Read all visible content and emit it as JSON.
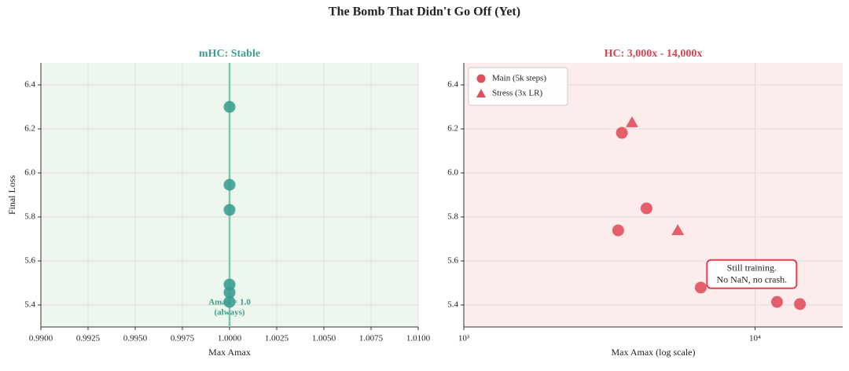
{
  "title": "The Bomb That Didn't Go Off (Yet)",
  "chart_data": [
    {
      "type": "scatter",
      "title": "mHC: Stable",
      "title_color": "#3a9e8f",
      "background": "#eef7ee",
      "xlabel": "Max Amax",
      "ylabel": "Final Loss",
      "xscale": "linear",
      "grid": true,
      "xlim": [
        0.99,
        1.01
      ],
      "xticks": [
        {
          "value": 0.99,
          "label": "0.9900"
        },
        {
          "value": 0.9925,
          "label": "0.9925"
        },
        {
          "value": 0.995,
          "label": "0.9950"
        },
        {
          "value": 0.9975,
          "label": "0.9975"
        },
        {
          "value": 1,
          "label": "1.0000"
        },
        {
          "value": 1.0025,
          "label": "1.0025"
        },
        {
          "value": 1.005,
          "label": "1.0050"
        },
        {
          "value": 1.0075,
          "label": "1.0075"
        },
        {
          "value": 1.01,
          "label": "1.0100"
        }
      ],
      "ylim": [
        5.3,
        6.5
      ],
      "yticks": [
        5.4,
        5.6,
        5.8,
        {
          "value": 6,
          "label": "6.0"
        },
        6.2,
        6.4
      ],
      "vline": 1,
      "vline_color": "#7cc5b6",
      "series": [
        {
          "color": "#3a9e8f",
          "marker": "circle",
          "x": [
            1,
            1,
            1,
            1,
            1,
            1
          ],
          "values": [
            6.3,
            5.946,
            5.832,
            5.493,
            5.457,
            5.414
          ]
        }
      ],
      "annotation": [
        "Amax = 1.0",
        "(always)"
      ]
    },
    {
      "type": "scatter",
      "title": "HC: 3,000x - 14,000x",
      "title_color": "#d9434f",
      "background": "#fdecec",
      "xlabel": "Max Amax (log scale)",
      "xscale": "log",
      "grid": true,
      "legend": "upper left",
      "xlim": [
        1000,
        20000
      ],
      "xticks": [
        {
          "value": 1000,
          "label": "10³"
        },
        {
          "value": 10000,
          "label": "10⁴"
        }
      ],
      "ylim": [
        5.3,
        6.5
      ],
      "yticks": [
        5.4,
        5.6,
        5.8,
        {
          "value": 6,
          "label": "6.0"
        },
        6.2,
        6.4
      ],
      "series": [
        {
          "name": "Main (5k steps)",
          "color": "#e0505c",
          "marker": "circle",
          "x": [
            3490,
            4240,
            3390,
            6510,
            11900,
            14260
          ],
          "values": [
            6.182,
            5.839,
            5.739,
            5.479,
            5.414,
            5.404
          ]
        },
        {
          "name": "Stress (3x LR)",
          "color": "#e0505c",
          "marker": "triangle",
          "x": [
            3780,
            5430
          ],
          "values": [
            6.229,
            5.739
          ]
        }
      ],
      "annotation": [
        "Still training.",
        "No NaN, no crash."
      ]
    }
  ]
}
